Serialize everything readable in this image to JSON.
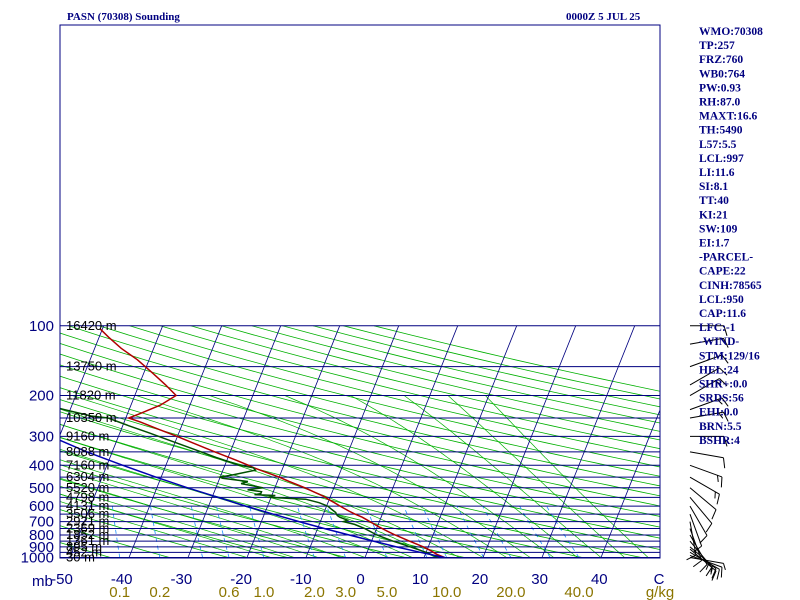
{
  "header": {
    "station": "PASN (70308) Sounding",
    "valid_time": "0000Z  5 JUL 25"
  },
  "colors": {
    "frame": "#000080",
    "isobar": "#000080",
    "isotherm": "#000080",
    "dry_adiabat": "#00b000",
    "moist_adiabat": "#00b000",
    "mixing_ratio": "#1e90ff",
    "temperature": "#b00000",
    "dewpoint": "#005000",
    "parcel": "#0000b0",
    "wind_barb": "#000000",
    "wlab": "#8b7500"
  },
  "axes": {
    "pressure_unit": "mb",
    "pressure_ticks": [
      "100",
      "200",
      "300",
      "400",
      "500",
      "600",
      "700",
      "800",
      "900",
      "1000"
    ],
    "temperature_ticks": [
      "-50",
      "-40",
      "-30",
      "-20",
      "-10",
      "0",
      "10",
      "20",
      "30",
      "40",
      "C"
    ],
    "mixing_ratio_ticks": [
      "0.1",
      "0.2",
      "0.6",
      "1.0",
      "2.0",
      "3.0",
      "5.0",
      "10.0",
      "20.0",
      "40.0",
      "g/kg"
    ],
    "height_labels": [
      "16420 m",
      "13750 m",
      "11820 m",
      "10350 m",
      "9160 m",
      "8088 m",
      "7160 m",
      "6304 m",
      "5520 m",
      "4798 m",
      "4131 m",
      "3506 m",
      "2921 m",
      "2369 m",
      "1852 m",
      "1361 m",
      "895 m",
      "452 m",
      "30 m"
    ]
  },
  "indices": [
    "WMO:70308",
    "TP:257",
    "FRZ:760",
    "WB0:764",
    "PW:0.93",
    "RH:87.0",
    "MAXT:16.6",
    "TH:5490",
    "L57:5.5",
    "LCL:997",
    "LI:11.6",
    "SI:8.1",
    "TT:40",
    "KI:21",
    "SW:109",
    "EI:1.7",
    "-PARCEL-",
    "CAPE:22",
    "CINH:78565",
    "LCL:950",
    "CAP:11.6",
    "LFC:-1",
    "-WIND-",
    "STM:129/16",
    "HEL:24",
    "SHR+:0.0",
    "SRDS:56",
    "EHI:0.0",
    "BRN:5.5",
    "BSHR:4"
  ],
  "chart_data": {
    "type": "skew-t log-p",
    "title": "PASN (70308) Sounding",
    "xlabel": "C",
    "ylabel": "mb",
    "ylim": [
      1000,
      100
    ],
    "xlim": [
      -50,
      50
    ],
    "levels": [
      {
        "p": 100,
        "z": "16420 m"
      },
      {
        "p": 150,
        "z": "13750 m"
      },
      {
        "p": 200,
        "z": "11820 m"
      },
      {
        "p": 250,
        "z": "10350 m"
      },
      {
        "p": 300,
        "z": "9160 m"
      },
      {
        "p": 350,
        "z": "8088 m"
      },
      {
        "p": 400,
        "z": "7160 m"
      },
      {
        "p": 450,
        "z": "6304 m"
      },
      {
        "p": 500,
        "z": "5520 m"
      },
      {
        "p": 550,
        "z": "4798 m"
      },
      {
        "p": 600,
        "z": "4131 m"
      },
      {
        "p": 650,
        "z": "3506 m"
      },
      {
        "p": 700,
        "z": "2921 m"
      },
      {
        "p": 750,
        "z": "2369 m"
      },
      {
        "p": 800,
        "z": "1852 m"
      },
      {
        "p": 850,
        "z": "1361 m"
      },
      {
        "p": 900,
        "z": "895 m"
      },
      {
        "p": 950,
        "z": "452 m"
      },
      {
        "p": 1000,
        "z": "30 m"
      }
    ],
    "series": [
      {
        "name": "temperature",
        "points": [
          [
            1000,
            13.5
          ],
          [
            970,
            12.0
          ],
          [
            930,
            10.5
          ],
          [
            900,
            9.2
          ],
          [
            850,
            6.4
          ],
          [
            800,
            3.6
          ],
          [
            770,
            2.0
          ],
          [
            740,
            0.4
          ],
          [
            700,
            -1.6
          ],
          [
            690,
            -2.1
          ],
          [
            670,
            -3.2
          ],
          [
            650,
            -4.6
          ],
          [
            630,
            -5.9
          ],
          [
            600,
            -7.7
          ],
          [
            580,
            -8.9
          ],
          [
            560,
            -10.2
          ],
          [
            545,
            -11.1
          ],
          [
            520,
            -13.2
          ],
          [
            500,
            -14.9
          ],
          [
            470,
            -18.0
          ],
          [
            450,
            -20.0
          ],
          [
            430,
            -22.4
          ],
          [
            410,
            -24.9
          ],
          [
            400,
            -26.0
          ],
          [
            380,
            -28.5
          ],
          [
            350,
            -32.6
          ],
          [
            320,
            -37.0
          ],
          [
            300,
            -40.1
          ],
          [
            280,
            -43.6
          ],
          [
            260,
            -47.3
          ],
          [
            250,
            -49.5
          ],
          [
            240,
            -48.0
          ],
          [
            220,
            -45.0
          ],
          [
            200,
            -43.0
          ],
          [
            180,
            -45.5
          ],
          [
            160,
            -48.5
          ],
          [
            150,
            -50.2
          ],
          [
            140,
            -52.0
          ],
          [
            125,
            -55.5
          ],
          [
            112,
            -58.4
          ],
          [
            103,
            -60.4
          ]
        ]
      },
      {
        "name": "dewpoint",
        "points": [
          [
            1000,
            12.4
          ],
          [
            950,
            10.0
          ],
          [
            900,
            7.0
          ],
          [
            850,
            3.6
          ],
          [
            800,
            0.5
          ],
          [
            750,
            -2.0
          ],
          [
            720,
            -4.0
          ],
          [
            700,
            -6.1
          ],
          [
            690,
            -5.5
          ],
          [
            670,
            -7.0
          ],
          [
            660,
            -7.5
          ],
          [
            650,
            -7.8
          ],
          [
            640,
            -8.0
          ],
          [
            620,
            -8.9
          ],
          [
            600,
            -9.8
          ],
          [
            580,
            -11.5
          ],
          [
            560,
            -14.0
          ],
          [
            550,
            -20.6
          ],
          [
            540,
            -19.4
          ],
          [
            535,
            -23.0
          ],
          [
            530,
            -22.0
          ],
          [
            520,
            -22.0
          ],
          [
            510,
            -24.5
          ],
          [
            500,
            -22.0
          ],
          [
            490,
            -24.0
          ],
          [
            480,
            -26.0
          ],
          [
            470,
            -25.0
          ],
          [
            455,
            -29.5
          ],
          [
            450,
            -30.1
          ],
          [
            445,
            -29.0
          ],
          [
            440,
            -28.0
          ],
          [
            420,
            -24.5
          ],
          [
            410,
            -25.0
          ],
          [
            400,
            -27.5
          ],
          [
            370,
            -32.0
          ],
          [
            340,
            -36.5
          ],
          [
            310,
            -41.5
          ],
          [
            290,
            -45.0
          ],
          [
            270,
            -49.0
          ],
          [
            250,
            -53.0
          ],
          [
            245,
            -56.0
          ],
          [
            230,
            -61.0
          ],
          [
            215,
            -66.0
          ],
          [
            200,
            -71.5
          ],
          [
            180,
            -74.5
          ],
          [
            160,
            -77.5
          ],
          [
            140,
            -81.0
          ],
          [
            120,
            -85.5
          ],
          [
            100,
            -91.0
          ]
        ]
      },
      {
        "name": "parcel",
        "points": [
          [
            1000,
            13.5
          ],
          [
            950,
            9.0
          ],
          [
            900,
            4.6
          ],
          [
            850,
            0.3
          ],
          [
            800,
            -4.2
          ],
          [
            750,
            -8.8
          ],
          [
            700,
            -13.6
          ],
          [
            650,
            -18.5
          ],
          [
            600,
            -23.7
          ],
          [
            550,
            -29.0
          ],
          [
            500,
            -34.8
          ],
          [
            450,
            -40.9
          ],
          [
            400,
            -47.3
          ],
          [
            350,
            -54.3
          ],
          [
            300,
            -61.5
          ],
          [
            250,
            -69.3
          ],
          [
            200,
            -78.0
          ],
          [
            150,
            -88.0
          ],
          [
            100,
            -101.0
          ]
        ]
      }
    ],
    "winds": [
      {
        "p": 1000,
        "dir": 100,
        "spd": 5
      },
      {
        "p": 980,
        "dir": 110,
        "spd": 10
      },
      {
        "p": 950,
        "dir": 120,
        "spd": 10
      },
      {
        "p": 920,
        "dir": 130,
        "spd": 15
      },
      {
        "p": 900,
        "dir": 130,
        "spd": 15
      },
      {
        "p": 850,
        "dir": 140,
        "spd": 15
      },
      {
        "p": 800,
        "dir": 150,
        "spd": 10
      },
      {
        "p": 750,
        "dir": 160,
        "spd": 10
      },
      {
        "p": 700,
        "dir": 170,
        "spd": 10
      },
      {
        "p": 650,
        "dir": 160,
        "spd": 10
      },
      {
        "p": 600,
        "dir": 150,
        "spd": 10
      },
      {
        "p": 550,
        "dir": 140,
        "spd": 10
      },
      {
        "p": 500,
        "dir": 130,
        "spd": 10
      },
      {
        "p": 450,
        "dir": 120,
        "spd": 15
      },
      {
        "p": 400,
        "dir": 110,
        "spd": 15
      },
      {
        "p": 350,
        "dir": 100,
        "spd": 10
      },
      {
        "p": 300,
        "dir": 90,
        "spd": 10
      },
      {
        "p": 250,
        "dir": 80,
        "spd": 15
      },
      {
        "p": 230,
        "dir": 70,
        "spd": 15
      },
      {
        "p": 200,
        "dir": 60,
        "spd": 15
      },
      {
        "p": 180,
        "dir": 60,
        "spd": 10
      },
      {
        "p": 150,
        "dir": 70,
        "spd": 10
      },
      {
        "p": 120,
        "dir": 80,
        "spd": 10
      },
      {
        "p": 100,
        "dir": 90,
        "spd": 10
      }
    ]
  }
}
